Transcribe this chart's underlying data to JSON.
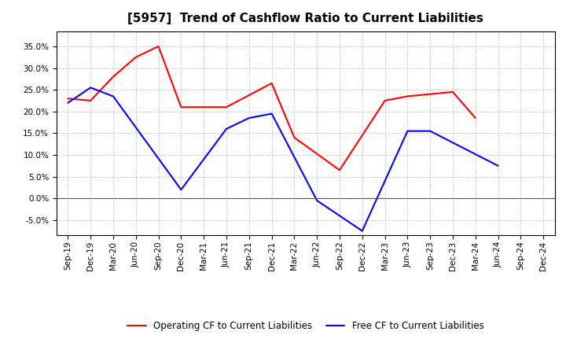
{
  "title": "[5957]  Trend of Cashflow Ratio to Current Liabilities",
  "x_labels": [
    "Sep-19",
    "Dec-19",
    "Mar-20",
    "Jun-20",
    "Sep-20",
    "Dec-20",
    "Mar-21",
    "Jun-21",
    "Sep-21",
    "Dec-21",
    "Mar-22",
    "Jun-22",
    "Sep-22",
    "Dec-22",
    "Mar-23",
    "Jun-23",
    "Sep-23",
    "Dec-23",
    "Mar-24",
    "Jun-24",
    "Sep-24",
    "Dec-24"
  ],
  "op_x": [
    0,
    1,
    2,
    3,
    4,
    5,
    6,
    7,
    9,
    10,
    12,
    14,
    15,
    17,
    18
  ],
  "op_y": [
    0.23,
    0.225,
    0.28,
    0.325,
    0.35,
    0.21,
    0.21,
    0.21,
    0.265,
    0.14,
    0.065,
    0.225,
    0.235,
    0.245,
    0.185
  ],
  "free_x": [
    0,
    1,
    2,
    5,
    7,
    8,
    9,
    11,
    13,
    15,
    16,
    19
  ],
  "free_y": [
    0.22,
    0.255,
    0.235,
    0.02,
    0.16,
    0.185,
    0.195,
    -0.005,
    -0.075,
    0.155,
    0.155,
    0.075
  ],
  "operating_color": "#FF0000",
  "free_color": "#0000FF",
  "yticks": [
    -0.05,
    0.0,
    0.05,
    0.1,
    0.15,
    0.2,
    0.25,
    0.3,
    0.35
  ],
  "grid_color": "#AAAAAA",
  "plot_bg_color": "#FFFFFF",
  "fig_bg_color": "#FFFFFF",
  "legend_op": "Operating CF to Current Liabilities",
  "legend_free": "Free CF to Current Liabilities",
  "title_fontsize": 11,
  "tick_fontsize": 7.5,
  "legend_fontsize": 8.5
}
